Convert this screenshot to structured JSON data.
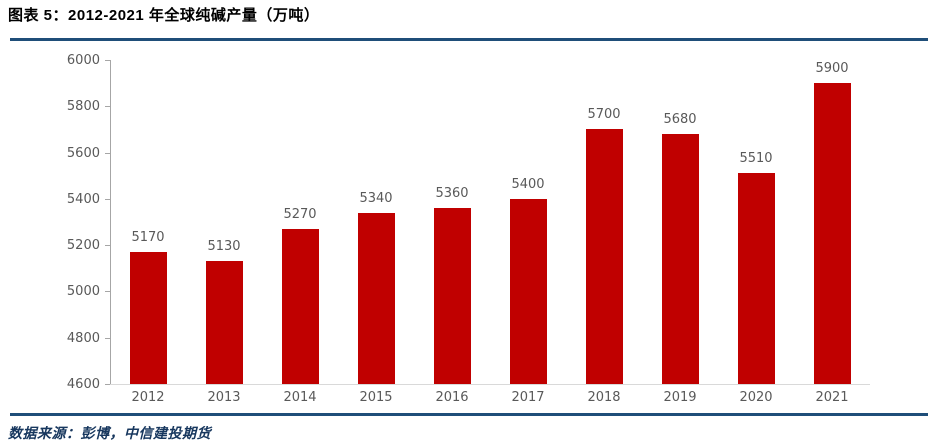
{
  "figure": {
    "title": "图表 5：2012-2021 年全球纯碱产量（万吨）",
    "source": "数据来源：彭博，中信建投期货"
  },
  "chart_data": {
    "type": "bar",
    "title": "2012-2021 年全球纯碱产量（万吨）",
    "categories": [
      "2012",
      "2013",
      "2014",
      "2015",
      "2016",
      "2017",
      "2018",
      "2019",
      "2020",
      "2021"
    ],
    "values": [
      5170,
      5130,
      5270,
      5340,
      5360,
      5400,
      5700,
      5680,
      5510,
      5900
    ],
    "xlabel": "",
    "ylabel": "",
    "ylim": [
      4600,
      6000
    ],
    "yticks": [
      4600,
      4800,
      5000,
      5200,
      5400,
      5600,
      5800,
      6000
    ],
    "ytick_interval": 200,
    "grid": false,
    "legend": "none",
    "data_labels": true,
    "bar_color": "#C00000",
    "label_color": "#595959",
    "y_axis_color": "#A6A6A6",
    "x_axis_color": "#D9D9D9"
  },
  "colors": {
    "divider_rule": "#1F4E79",
    "title_text": "#000000",
    "source_text": "#17375E"
  }
}
